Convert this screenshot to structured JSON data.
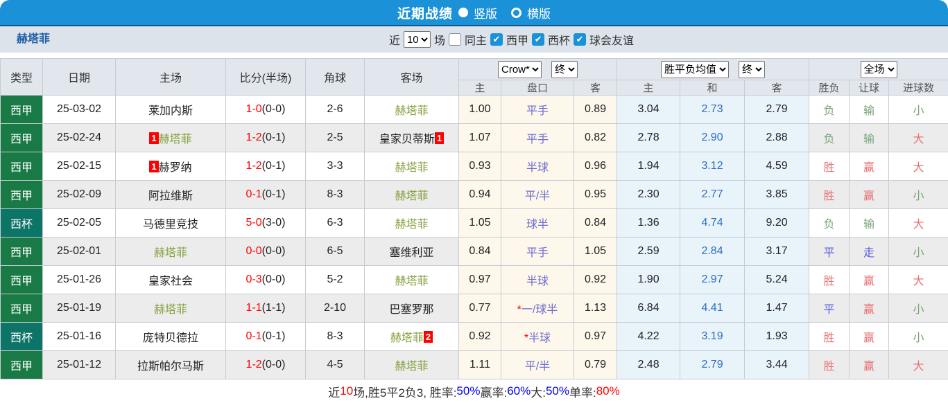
{
  "titlebar": {
    "title": "近期战绩",
    "radio_vertical": "竖版",
    "radio_horizontal": "横版"
  },
  "filterbar": {
    "team": "赫塔菲",
    "near_label": "近",
    "near_value": "10",
    "matches_label": "场",
    "same_home_label": "同主",
    "leagues": [
      "西甲",
      "西杯",
      "球会友谊"
    ]
  },
  "colors": {
    "topbar_blue": "#1b91d8",
    "liga_green": "#1a7a45",
    "copa_teal": "#0d7468",
    "team_green": "#85a13e",
    "score_red": "#ff0000",
    "handicap_slate": "#6e6ecf",
    "avg_draw_blue": "#2e6fc0",
    "win_red": "#e87070",
    "lose_green": "#79a379",
    "draw_blue": "#5b5be0"
  },
  "table": {
    "static_headers": [
      "类型",
      "日期",
      "主场",
      "比分(半场)",
      "角球",
      "客场"
    ],
    "odds_group": {
      "select1": "Crow*",
      "select2": "终",
      "cols": [
        "主",
        "盘口",
        "客"
      ]
    },
    "avg_group": {
      "select1": "胜平负均值",
      "select2": "终",
      "cols": [
        "主",
        "和",
        "客"
      ]
    },
    "result_group": {
      "select": "全场",
      "cols": [
        "胜负",
        "让球",
        "进球数"
      ]
    },
    "rows": [
      {
        "type": "西甲",
        "tc": "liga",
        "date": "25-03-02",
        "home": "莱加内斯",
        "home_green": false,
        "home_badge": "",
        "score_ft": "1-0",
        "score_ht": "(0-0)",
        "corners": "2-6",
        "away": "赫塔菲",
        "away_green": true,
        "away_badge": "",
        "odds_home": "1.00",
        "handicap": "平手",
        "handicap_star": false,
        "odds_away": "0.89",
        "avg_home": "3.04",
        "avg_draw": "2.73",
        "avg_away": "2.79",
        "res": [
          [
            "负",
            "g"
          ],
          [
            "输",
            "g"
          ],
          [
            "小",
            "g"
          ]
        ]
      },
      {
        "type": "西甲",
        "tc": "liga",
        "date": "25-02-24",
        "home": "赫塔菲",
        "home_green": true,
        "home_badge": "1",
        "score_ft": "1-2",
        "score_ht": "(0-1)",
        "corners": "2-5",
        "away": "皇家贝蒂斯",
        "away_green": false,
        "away_badge": "1",
        "odds_home": "1.07",
        "handicap": "平手",
        "handicap_star": false,
        "odds_away": "0.82",
        "avg_home": "2.78",
        "avg_draw": "2.90",
        "avg_away": "2.88",
        "res": [
          [
            "负",
            "g"
          ],
          [
            "输",
            "g"
          ],
          [
            "大",
            "r"
          ]
        ]
      },
      {
        "type": "西甲",
        "tc": "liga",
        "date": "25-02-15",
        "home": "赫罗纳",
        "home_green": false,
        "home_badge": "1",
        "score_ft": "1-2",
        "score_ht": "(0-1)",
        "corners": "3-3",
        "away": "赫塔菲",
        "away_green": true,
        "away_badge": "",
        "odds_home": "0.93",
        "handicap": "半球",
        "handicap_star": false,
        "odds_away": "0.96",
        "avg_home": "1.94",
        "avg_draw": "3.12",
        "avg_away": "4.59",
        "res": [
          [
            "胜",
            "r"
          ],
          [
            "赢",
            "r"
          ],
          [
            "大",
            "r"
          ]
        ]
      },
      {
        "type": "西甲",
        "tc": "liga",
        "date": "25-02-09",
        "home": "阿拉维斯",
        "home_green": false,
        "home_badge": "",
        "score_ft": "0-1",
        "score_ht": "(0-1)",
        "corners": "8-3",
        "away": "赫塔菲",
        "away_green": true,
        "away_badge": "",
        "odds_home": "0.94",
        "handicap": "平/半",
        "handicap_star": false,
        "odds_away": "0.95",
        "avg_home": "2.30",
        "avg_draw": "2.77",
        "avg_away": "3.85",
        "res": [
          [
            "胜",
            "r"
          ],
          [
            "赢",
            "r"
          ],
          [
            "小",
            "g"
          ]
        ]
      },
      {
        "type": "西杯",
        "tc": "copa",
        "date": "25-02-05",
        "home": "马德里竞技",
        "home_green": false,
        "home_badge": "",
        "score_ft": "5-0",
        "score_ht": "(3-0)",
        "corners": "6-3",
        "away": "赫塔菲",
        "away_green": true,
        "away_badge": "",
        "odds_home": "1.05",
        "handicap": "球半",
        "handicap_star": false,
        "odds_away": "0.84",
        "avg_home": "1.36",
        "avg_draw": "4.74",
        "avg_away": "9.20",
        "res": [
          [
            "负",
            "g"
          ],
          [
            "输",
            "g"
          ],
          [
            "大",
            "r"
          ]
        ]
      },
      {
        "type": "西甲",
        "tc": "liga",
        "date": "25-02-01",
        "home": "赫塔菲",
        "home_green": true,
        "home_badge": "",
        "score_ft": "0-0",
        "score_ht": "(0-0)",
        "corners": "6-5",
        "away": "塞维利亚",
        "away_green": false,
        "away_badge": "",
        "odds_home": "0.84",
        "handicap": "平手",
        "handicap_star": false,
        "odds_away": "1.05",
        "avg_home": "2.59",
        "avg_draw": "2.84",
        "avg_away": "3.17",
        "res": [
          [
            "平",
            "b"
          ],
          [
            "走",
            "b"
          ],
          [
            "小",
            "g"
          ]
        ]
      },
      {
        "type": "西甲",
        "tc": "liga",
        "date": "25-01-26",
        "home": "皇家社会",
        "home_green": false,
        "home_badge": "",
        "score_ft": "0-3",
        "score_ht": "(0-0)",
        "corners": "5-2",
        "away": "赫塔菲",
        "away_green": true,
        "away_badge": "",
        "odds_home": "0.97",
        "handicap": "半球",
        "handicap_star": false,
        "odds_away": "0.92",
        "avg_home": "1.90",
        "avg_draw": "2.97",
        "avg_away": "5.24",
        "res": [
          [
            "胜",
            "r"
          ],
          [
            "赢",
            "r"
          ],
          [
            "大",
            "r"
          ]
        ]
      },
      {
        "type": "西甲",
        "tc": "liga",
        "date": "25-01-19",
        "home": "赫塔菲",
        "home_green": true,
        "home_badge": "",
        "score_ft": "1-1",
        "score_ht": "(1-1)",
        "corners": "2-10",
        "away": "巴塞罗那",
        "away_green": false,
        "away_badge": "",
        "odds_home": "0.77",
        "handicap": "一/球半",
        "handicap_star": true,
        "odds_away": "1.13",
        "avg_home": "6.84",
        "avg_draw": "4.41",
        "avg_away": "1.47",
        "res": [
          [
            "平",
            "b"
          ],
          [
            "赢",
            "r"
          ],
          [
            "小",
            "g"
          ]
        ]
      },
      {
        "type": "西杯",
        "tc": "copa",
        "date": "25-01-16",
        "home": "庞特贝德拉",
        "home_green": false,
        "home_badge": "",
        "score_ft": "0-1",
        "score_ht": "(0-1)",
        "corners": "8-3",
        "away": "赫塔菲",
        "away_green": true,
        "away_badge": "2",
        "odds_home": "0.92",
        "handicap": "半球",
        "handicap_star": true,
        "odds_away": "0.97",
        "avg_home": "4.22",
        "avg_draw": "3.19",
        "avg_away": "1.93",
        "res": [
          [
            "胜",
            "r"
          ],
          [
            "赢",
            "r"
          ],
          [
            "小",
            "g"
          ]
        ]
      },
      {
        "type": "西甲",
        "tc": "liga",
        "date": "25-01-12",
        "home": "拉斯帕尔马斯",
        "home_green": false,
        "home_badge": "",
        "score_ft": "1-2",
        "score_ht": "(0-0)",
        "corners": "4-5",
        "away": "赫塔菲",
        "away_green": true,
        "away_badge": "",
        "odds_home": "1.11",
        "handicap": "平/半",
        "handicap_star": false,
        "odds_away": "0.79",
        "avg_home": "2.48",
        "avg_draw": "2.79",
        "avg_away": "3.44",
        "res": [
          [
            "胜",
            "r"
          ],
          [
            "赢",
            "r"
          ],
          [
            "大",
            "r"
          ]
        ]
      }
    ]
  },
  "summary": {
    "segments": [
      {
        "t": "近",
        "c": "black"
      },
      {
        "t": "10",
        "c": "red"
      },
      {
        "t": "场,胜5平2负3, 胜率:",
        "c": "black"
      },
      {
        "t": "50%",
        "c": "blue"
      },
      {
        "t": " 赢率:",
        "c": "black"
      },
      {
        "t": "60%",
        "c": "blue"
      },
      {
        "t": " 大:",
        "c": "black"
      },
      {
        "t": "50%",
        "c": "blue"
      },
      {
        "t": " 单率:",
        "c": "black"
      },
      {
        "t": "80%",
        "c": "red"
      }
    ]
  }
}
